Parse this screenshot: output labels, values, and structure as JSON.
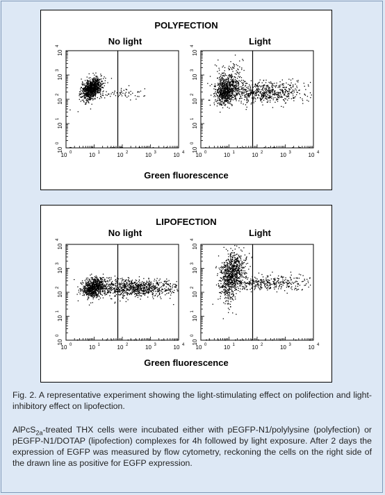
{
  "figure": {
    "panels": [
      {
        "title": "POLYFECTION",
        "x_label": "Green fluorescence",
        "plots": [
          {
            "subtitle": "No light",
            "gate_log": 1.84,
            "x_tick_labels": [
              "10",
              "10",
              "10",
              "10",
              "10"
            ],
            "y_tick_labels": [
              "10",
              "10",
              "10",
              "10",
              "10"
            ],
            "tick_exponents": [
              "0",
              "1",
              "2",
              "3",
              "4"
            ]
          },
          {
            "subtitle": "Light",
            "gate_log": 1.84,
            "x_tick_labels": [
              "10",
              "10",
              "10",
              "10",
              "10"
            ],
            "y_tick_labels": [
              "10",
              "10",
              "10",
              "10",
              "10"
            ],
            "tick_exponents": [
              "0",
              "1",
              "2",
              "3",
              "4"
            ]
          }
        ]
      },
      {
        "title": "LIPOFECTION",
        "x_label": "Green fluorescence",
        "plots": [
          {
            "subtitle": "No light",
            "gate_log": 1.84,
            "x_tick_labels": [
              "10",
              "10",
              "10",
              "10",
              "10"
            ],
            "y_tick_labels": [
              "10",
              "10",
              "10",
              "10",
              "10"
            ],
            "tick_exponents": [
              "0",
              "1",
              "2",
              "3",
              "4"
            ]
          },
          {
            "subtitle": "Light",
            "gate_log": 1.84,
            "x_tick_labels": [
              "10",
              "10",
              "10",
              "10",
              "10"
            ],
            "y_tick_labels": [
              "10",
              "10",
              "10",
              "10",
              "10"
            ],
            "tick_exponents": [
              "0",
              "1",
              "2",
              "3",
              "4"
            ]
          }
        ]
      }
    ]
  },
  "caption": {
    "line1": "Fig. 2. A representative experiment showing the light-stimulating effect on polifection and light-inhibitory effect on lipofection.",
    "para2_prefix": "AlPcS",
    "para2_sub": "2a",
    "para2_rest": "-treated THX cells were incubated either with pEGFP-N1/polylysine (polyfection) or pEGFP-N1/DOTAP (lipofection) complexes for 4h followed by light exposure. After 2 days the expression of EGFP was measured by flow cytometry, reckoning the cells on the right side of the drawn line as positive for EGFP expression."
  },
  "colors": {
    "background": "#dde8f5",
    "panel": "#ffffff",
    "dots": "#000000",
    "border": "#7f99b8"
  }
}
